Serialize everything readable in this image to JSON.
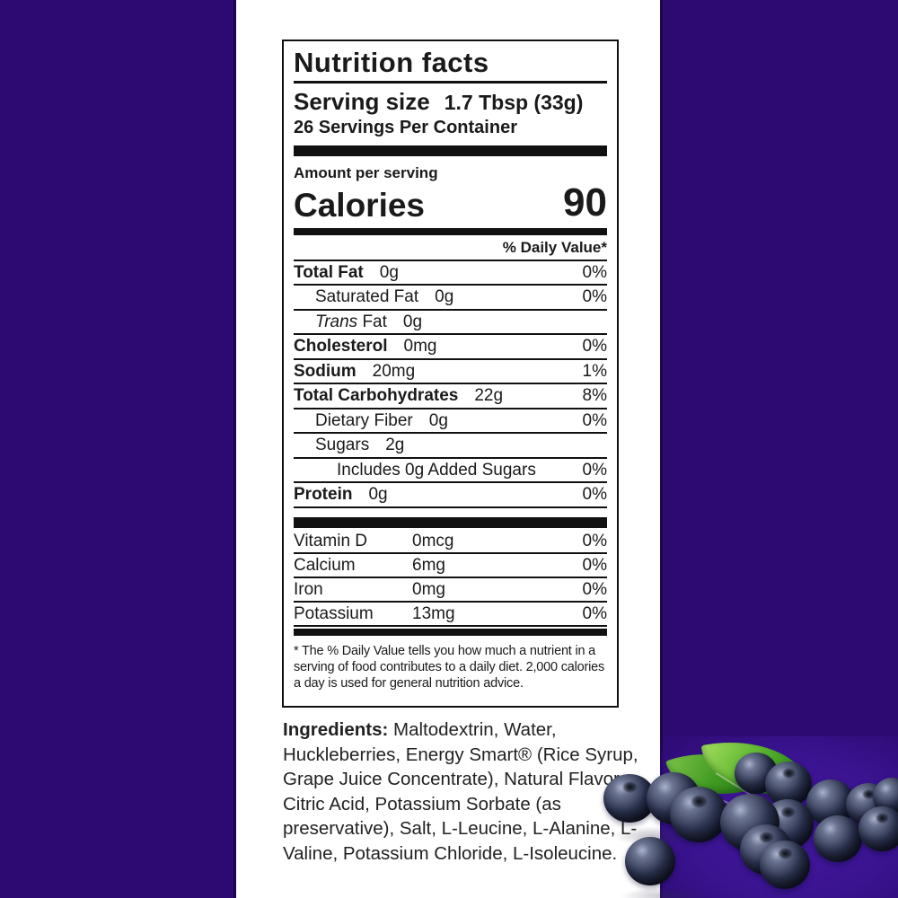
{
  "label": {
    "title": "Nutrition facts",
    "serving_size_label": "Serving size",
    "serving_size_value": "1.7 Tbsp (33g)",
    "servings_per_container": "26 Servings Per Container",
    "amount_per_serving": "Amount per serving",
    "calories_label": "Calories",
    "calories_value": "90",
    "daily_value_header": "% Daily Value*",
    "nutrient_rows": [
      {
        "name": "Total Fat",
        "bold": true,
        "indent": 0,
        "amount": "0g",
        "dv": "0%"
      },
      {
        "name": "Saturated Fat",
        "bold": false,
        "indent": 1,
        "amount": "0g",
        "dv": "0%"
      },
      {
        "name_italic": "Trans",
        "name": " Fat",
        "bold": false,
        "indent": 1,
        "amount": "0g",
        "dv": ""
      },
      {
        "name": "Cholesterol",
        "bold": true,
        "indent": 0,
        "amount": "0mg",
        "dv": "0%"
      },
      {
        "name": "Sodium",
        "bold": true,
        "indent": 0,
        "amount": "20mg",
        "dv": "1%"
      },
      {
        "name": "Total Carbohydrates",
        "bold": true,
        "indent": 0,
        "amount": "22g",
        "dv": "8%"
      },
      {
        "name": "Dietary Fiber",
        "bold": false,
        "indent": 1,
        "amount": "0g",
        "dv": "0%"
      },
      {
        "name": "Sugars",
        "bold": false,
        "indent": 1,
        "amount": "2g",
        "dv": ""
      },
      {
        "name": "Includes 0g Added Sugars",
        "bold": false,
        "indent": 2,
        "amount": "",
        "dv": "0%"
      },
      {
        "name": "Protein",
        "bold": true,
        "indent": 0,
        "amount": "0g",
        "dv": "0%"
      }
    ],
    "vitamin_rows": [
      {
        "name": "Vitamin D",
        "amount": "0mcg",
        "dv": "0%"
      },
      {
        "name": "Calcium",
        "amount": "6mg",
        "dv": "0%"
      },
      {
        "name": "Iron",
        "amount": "0mg",
        "dv": "0%"
      },
      {
        "name": "Potassium",
        "amount": "13mg",
        "dv": "0%"
      }
    ],
    "footnote": "* The % Daily Value tells you how much a nutrient in a serving of food contributes to a daily diet. 2,000 calories a day is used for general nutrition advice."
  },
  "ingredients": {
    "label": "Ingredients:",
    "text": " Maltodextrin, Water, Huckleberries,  Energy Smart® (Rice Syrup, Grape Juice Concentrate),  Natural Flavor, Citric Acid, Potassium Sorbate (as preservative), Salt, L-Leucine, L-Alanine, L-Valine, Potassium Chloride, L-Isoleucine."
  },
  "illustration": {
    "description": "cluster of fresh blueberries with two green leaves"
  },
  "colors": {
    "side_bars": "#2c0a72",
    "berry_backdrop": "#3a1390",
    "label_border": "#111111"
  }
}
